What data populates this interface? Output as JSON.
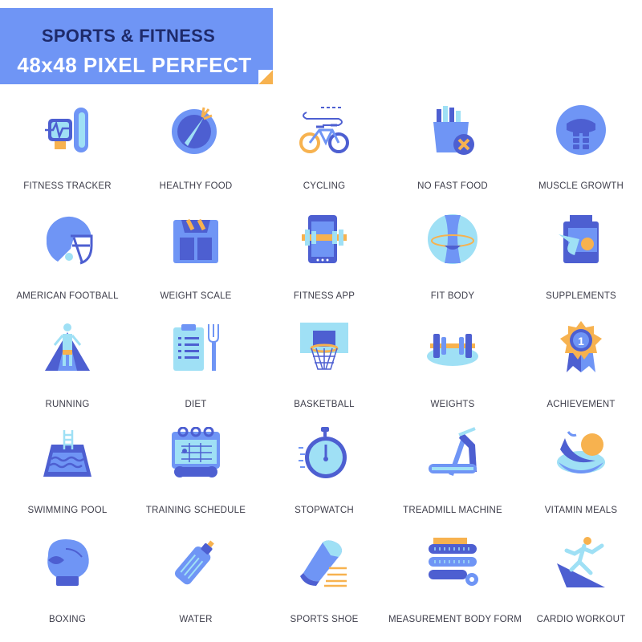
{
  "header": {
    "title": "SPORTS & FITNESS",
    "subtitle": "48x48 PIXEL PERFECT"
  },
  "colors": {
    "blue": "#6f95f5",
    "dark_blue": "#4d5fd1",
    "light_blue": "#9fe0f5",
    "orange": "#f7b24f",
    "white": "#ffffff",
    "label": "#3d3d4a"
  },
  "icons": [
    {
      "label": "FITNESS TRACKER",
      "icon": "fitness-tracker-icon"
    },
    {
      "label": "HEALTHY FOOD",
      "icon": "healthy-food-icon"
    },
    {
      "label": "CYCLING",
      "icon": "cycling-icon"
    },
    {
      "label": "NO FAST FOOD",
      "icon": "no-fast-food-icon"
    },
    {
      "label": "MUSCLE GROWTH",
      "icon": "muscle-growth-icon"
    },
    {
      "label": "AMERICAN FOOTBALL",
      "icon": "american-football-icon"
    },
    {
      "label": "WEIGHT SCALE",
      "icon": "weight-scale-icon"
    },
    {
      "label": "FITNESS APP",
      "icon": "fitness-app-icon"
    },
    {
      "label": "FIT BODY",
      "icon": "fit-body-icon"
    },
    {
      "label": "SUPPLEMENTS",
      "icon": "supplements-icon"
    },
    {
      "label": "RUNNING",
      "icon": "running-icon"
    },
    {
      "label": "DIET",
      "icon": "diet-icon"
    },
    {
      "label": "BASKETBALL",
      "icon": "basketball-icon"
    },
    {
      "label": "WEIGHTS",
      "icon": "weights-icon"
    },
    {
      "label": "ACHIEVEMENT",
      "icon": "achievement-icon"
    },
    {
      "label": "SWIMMING POOL",
      "icon": "swimming-pool-icon"
    },
    {
      "label": "TRAINING SCHEDULE",
      "icon": "training-schedule-icon"
    },
    {
      "label": "STOPWATCH",
      "icon": "stopwatch-icon"
    },
    {
      "label": "TREADMILL MACHINE",
      "icon": "treadmill-machine-icon"
    },
    {
      "label": "VITAMIN MEALS",
      "icon": "vitamin-meals-icon"
    },
    {
      "label": "BOXING",
      "icon": "boxing-icon"
    },
    {
      "label": "WATER",
      "icon": "water-icon"
    },
    {
      "label": "SPORTS SHOE",
      "icon": "sports-shoe-icon"
    },
    {
      "label": "MEASUREMENT BODY FORM",
      "icon": "measurement-body-form-icon"
    },
    {
      "label": "CARDIO WORKOUT",
      "icon": "cardio-workout-icon"
    }
  ]
}
